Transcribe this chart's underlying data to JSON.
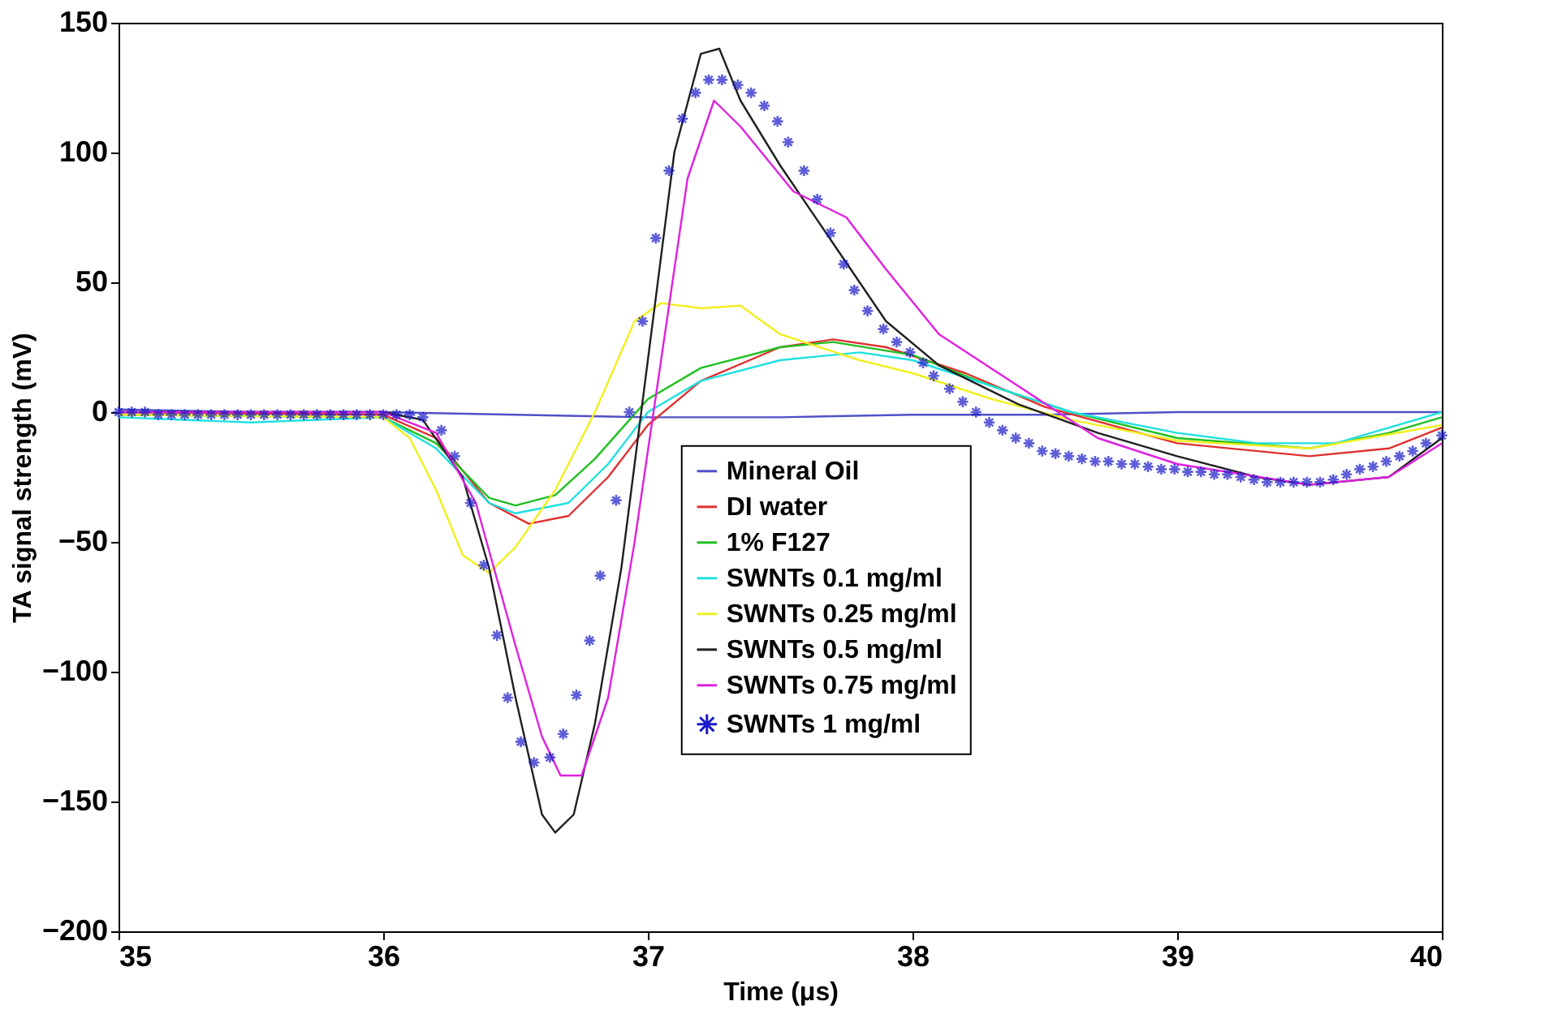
{
  "chart_data": {
    "type": "line",
    "xlabel": "Time (μs)",
    "ylabel": "TA signal strength (mV)",
    "xlim": [
      35,
      40
    ],
    "xticks": [
      35,
      36,
      37,
      38,
      39,
      40
    ],
    "ylim": [
      -200,
      150
    ],
    "yticks": [
      -200,
      -150,
      -100,
      -50,
      0,
      50,
      100,
      150
    ],
    "grid": false,
    "legend": "bottom",
    "line_style": "solid",
    "series": [
      {
        "name": "Mineral Oil",
        "color": "#5050c8",
        "x": [
          35,
          35.5,
          36,
          36.5,
          37,
          37.5,
          38,
          38.5,
          39,
          39.5,
          40
        ],
        "values": [
          1,
          0,
          0,
          -1,
          -2,
          -2,
          -1,
          -1,
          0,
          0,
          0
        ]
      },
      {
        "name": "DI water",
        "color": "#e03030",
        "x": [
          35,
          36,
          36.2,
          36.4,
          36.55,
          36.7,
          36.85,
          37,
          37.2,
          37.5,
          37.7,
          37.9,
          38.2,
          38.5,
          39,
          39.5,
          39.8,
          40
        ],
        "values": [
          0,
          -1,
          -10,
          -35,
          -43,
          -40,
          -25,
          -5,
          12,
          25,
          28,
          25,
          15,
          2,
          -12,
          -17,
          -14,
          -6
        ]
      },
      {
        "name": "1% F127",
        "color": "#20c020",
        "x": [
          35,
          36,
          36.2,
          36.4,
          36.5,
          36.65,
          36.8,
          37,
          37.2,
          37.5,
          37.7,
          38,
          38.3,
          38.6,
          39,
          39.5,
          39.8,
          40
        ],
        "values": [
          -1,
          -2,
          -12,
          -33,
          -36,
          -32,
          -18,
          5,
          17,
          25,
          27,
          22,
          10,
          0,
          -10,
          -14,
          -8,
          -2
        ]
      },
      {
        "name": "SWNTs 0.1 mg/ml",
        "color": "#20e0e0",
        "x": [
          35,
          35.5,
          36,
          36.2,
          36.4,
          36.5,
          36.7,
          36.85,
          37,
          37.2,
          37.5,
          37.8,
          38,
          38.3,
          38.6,
          39,
          39.3,
          39.6,
          40
        ],
        "values": [
          -2,
          -4,
          -2,
          -14,
          -35,
          -39,
          -35,
          -20,
          0,
          12,
          20,
          23,
          20,
          10,
          0,
          -8,
          -12,
          -12,
          0
        ]
      },
      {
        "name": "SWNTs 0.25 mg/ml",
        "color": "#f0f020",
        "x": [
          35,
          36,
          36.1,
          36.2,
          36.3,
          36.4,
          36.5,
          36.65,
          36.8,
          36.95,
          37.05,
          37.2,
          37.35,
          37.5,
          37.8,
          38,
          38.3,
          38.6,
          39,
          39.5,
          40
        ],
        "values": [
          -1,
          -2,
          -10,
          -30,
          -55,
          -62,
          -52,
          -30,
          0,
          35,
          42,
          40,
          41,
          30,
          20,
          15,
          5,
          -3,
          -11,
          -14,
          -5
        ]
      },
      {
        "name": "SWNTs 0.5 mg/ml",
        "color": "#202020",
        "x": [
          35,
          36,
          36.15,
          36.3,
          36.4,
          36.5,
          36.6,
          36.65,
          36.72,
          36.8,
          36.9,
          37,
          37.1,
          37.2,
          37.27,
          37.35,
          37.5,
          37.7,
          37.9,
          38.1,
          38.4,
          38.7,
          39,
          39.3,
          39.5,
          39.8,
          40
        ],
        "values": [
          0,
          0,
          -3,
          -25,
          -60,
          -110,
          -155,
          -162,
          -155,
          -120,
          -60,
          20,
          100,
          138,
          140,
          120,
          95,
          65,
          35,
          18,
          3,
          -8,
          -17,
          -25,
          -28,
          -25,
          -10
        ]
      },
      {
        "name": "SWNTs 0.75 mg/ml",
        "color": "#e020e0",
        "x": [
          35,
          36,
          36.2,
          36.35,
          36.5,
          36.6,
          36.67,
          36.75,
          36.85,
          36.95,
          37.05,
          37.15,
          37.25,
          37.35,
          37.55,
          37.75,
          37.9,
          38.1,
          38.4,
          38.7,
          39,
          39.5,
          39.8,
          40
        ],
        "values": [
          0,
          0,
          -8,
          -35,
          -90,
          -125,
          -140,
          -140,
          -110,
          -50,
          20,
          90,
          120,
          110,
          85,
          75,
          55,
          30,
          10,
          -10,
          -20,
          -28,
          -25,
          -12
        ]
      },
      {
        "name": "SWNTs 1 mg/ml",
        "color": "#1a1ac8",
        "type": "scatter",
        "marker": "cross",
        "x": [
          35,
          35.05,
          35.1,
          35.15,
          35.2,
          35.25,
          35.3,
          35.35,
          35.4,
          35.45,
          35.5,
          35.55,
          35.6,
          35.65,
          35.7,
          35.75,
          35.8,
          35.85,
          35.9,
          35.95,
          36,
          36.05,
          36.1,
          36.15,
          36.22,
          36.27,
          36.33,
          36.38,
          36.43,
          36.47,
          36.52,
          36.57,
          36.63,
          36.68,
          36.73,
          36.78,
          36.82,
          36.88,
          36.93,
          36.98,
          37.03,
          37.08,
          37.13,
          37.18,
          37.23,
          37.28,
          37.34,
          37.39,
          37.44,
          37.49,
          37.53,
          37.59,
          37.64,
          37.69,
          37.74,
          37.78,
          37.83,
          37.89,
          37.94,
          37.99,
          38.04,
          38.08,
          38.14,
          38.19,
          38.24,
          38.29,
          38.34,
          38.39,
          38.44,
          38.49,
          38.54,
          38.59,
          38.64,
          38.69,
          38.74,
          38.79,
          38.84,
          38.89,
          38.94,
          38.99,
          39.04,
          39.09,
          39.14,
          39.19,
          39.24,
          39.29,
          39.34,
          39.39,
          39.44,
          39.49,
          39.54,
          39.59,
          39.64,
          39.69,
          39.74,
          39.79,
          39.84,
          39.89,
          39.94,
          40
        ],
        "values": [
          0,
          0,
          0,
          -1,
          -1,
          -1,
          -1,
          -1,
          -1,
          -1,
          -1,
          -1,
          -1,
          -1,
          -1,
          -1,
          -1,
          -1,
          -1,
          -1,
          -1,
          -1,
          -1,
          -2,
          -7,
          -17,
          -35,
          -59,
          -86,
          -110,
          -127,
          -135,
          -133,
          -124,
          -109,
          -88,
          -63,
          -34,
          0,
          35,
          67,
          93,
          113,
          123,
          128,
          128,
          126,
          123,
          118,
          112,
          104,
          93,
          82,
          69,
          57,
          47,
          39,
          32,
          27,
          23,
          19,
          14,
          9,
          4,
          0,
          -4,
          -7,
          -10,
          -12,
          -15,
          -16,
          -17,
          -18,
          -19,
          -19,
          -20,
          -20,
          -21,
          -22,
          -22,
          -23,
          -23,
          -24,
          -24,
          -25,
          -26,
          -27,
          -27,
          -27,
          -27,
          -27,
          -26,
          -24,
          -22,
          -21,
          -19,
          -17,
          -15,
          -12,
          -9
        ]
      }
    ]
  }
}
